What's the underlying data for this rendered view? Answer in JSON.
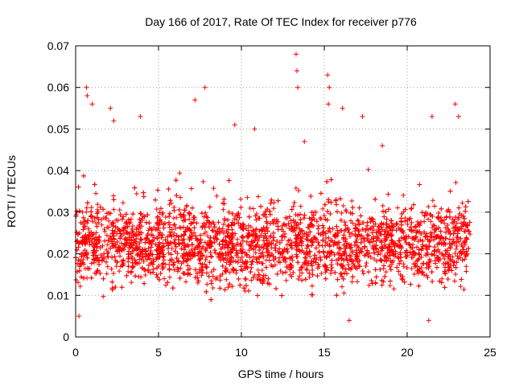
{
  "chart_data": {
    "type": "scatter",
    "title": "Day 166 of 2017, Rate Of TEC Index for receiver p776",
    "xlabel": "GPS time / hours",
    "ylabel": "ROTI / TECUs",
    "xlim": [
      0,
      25
    ],
    "ylim": [
      0,
      0.07
    ],
    "xticks": [
      0,
      5,
      10,
      15,
      20,
      25
    ],
    "xtick_labels": [
      "0",
      "5",
      "10",
      "15",
      "20",
      "25"
    ],
    "yticks": [
      0,
      0.01,
      0.02,
      0.03,
      0.04,
      0.05,
      0.06,
      0.07
    ],
    "ytick_labels": [
      "0",
      "0.01",
      "0.02",
      "0.03",
      "0.04",
      "0.05",
      "0.06",
      "0.07"
    ],
    "grid": true,
    "marker": "+",
    "color": "#ff0000",
    "data_time_range_hours": [
      0,
      23.8
    ],
    "typical_range": [
      0.008,
      0.035
    ],
    "notable_points": [
      {
        "x": 0.65,
        "y": 0.06
      },
      {
        "x": 0.7,
        "y": 0.058
      },
      {
        "x": 1.0,
        "y": 0.056
      },
      {
        "x": 2.1,
        "y": 0.055
      },
      {
        "x": 2.3,
        "y": 0.052
      },
      {
        "x": 3.9,
        "y": 0.053
      },
      {
        "x": 7.2,
        "y": 0.057
      },
      {
        "x": 7.8,
        "y": 0.06
      },
      {
        "x": 9.6,
        "y": 0.051
      },
      {
        "x": 10.8,
        "y": 0.05
      },
      {
        "x": 13.3,
        "y": 0.068
      },
      {
        "x": 13.35,
        "y": 0.064
      },
      {
        "x": 13.4,
        "y": 0.06
      },
      {
        "x": 15.2,
        "y": 0.063
      },
      {
        "x": 15.3,
        "y": 0.06
      },
      {
        "x": 15.25,
        "y": 0.056
      },
      {
        "x": 16.1,
        "y": 0.055
      },
      {
        "x": 17.3,
        "y": 0.053
      },
      {
        "x": 21.5,
        "y": 0.053
      },
      {
        "x": 22.9,
        "y": 0.056
      },
      {
        "x": 23.1,
        "y": 0.053
      },
      {
        "x": 16.5,
        "y": 0.004
      },
      {
        "x": 21.3,
        "y": 0.004
      },
      {
        "x": 0.2,
        "y": 0.005
      },
      {
        "x": 13.8,
        "y": 0.047
      },
      {
        "x": 18.5,
        "y": 0.046
      }
    ]
  }
}
